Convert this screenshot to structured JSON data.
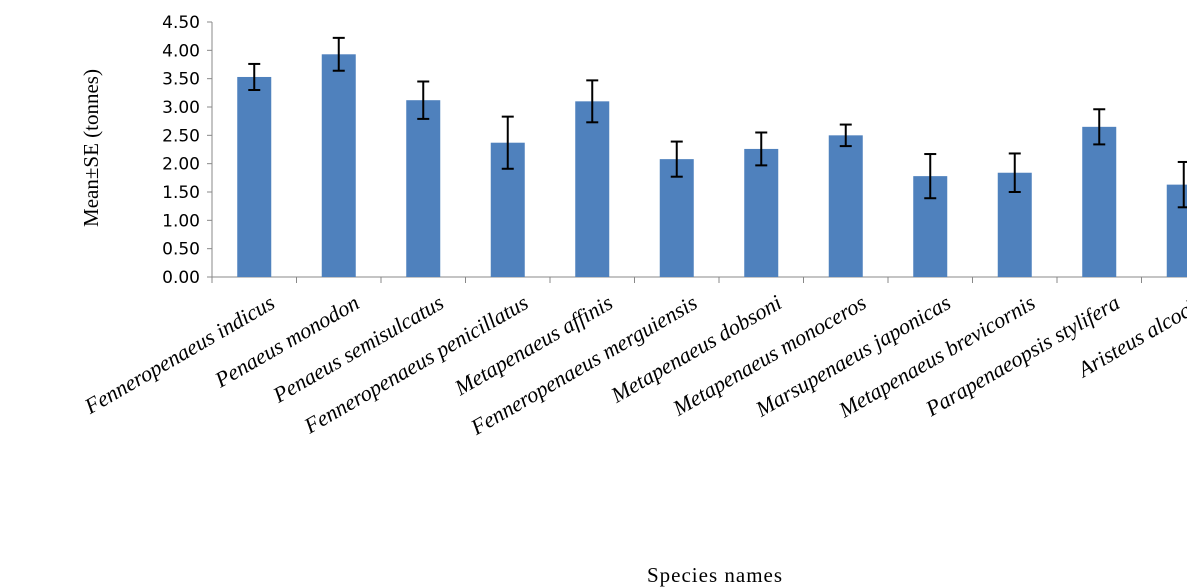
{
  "chart_data": {
    "type": "bar",
    "title": "",
    "xlabel": "Species names",
    "ylabel": "Mean±SE (tonnes)",
    "ylim": [
      0,
      4.5
    ],
    "yticks": [
      "0.00",
      "0.50",
      "1.00",
      "1.50",
      "2.00",
      "2.50",
      "3.00",
      "3.50",
      "4.00",
      "4.50"
    ],
    "categories": [
      "Fenneropenaeus indicus",
      "Penaeus monodon",
      "Penaeus semisulcatus",
      "Fenneropenaeus penicillatus",
      "Metapenaeus affinis",
      "Fenneropenaeus merguiensis",
      "Metapenaeus dobsoni",
      "Metapenaeus monoceros",
      "Marsupenaeus japonicas",
      "Metapenaeus brevicornis",
      "Parapenaeopsis stylifera",
      "Aristeus alcocki"
    ],
    "values": [
      3.53,
      3.93,
      3.12,
      2.37,
      3.1,
      2.08,
      2.26,
      2.5,
      1.78,
      1.84,
      2.65,
      1.63
    ],
    "errors": [
      0.23,
      0.29,
      0.33,
      0.46,
      0.37,
      0.31,
      0.29,
      0.19,
      0.39,
      0.34,
      0.31,
      0.4
    ],
    "bar_color": "#4F81BD",
    "grid": false,
    "legend": "none"
  }
}
